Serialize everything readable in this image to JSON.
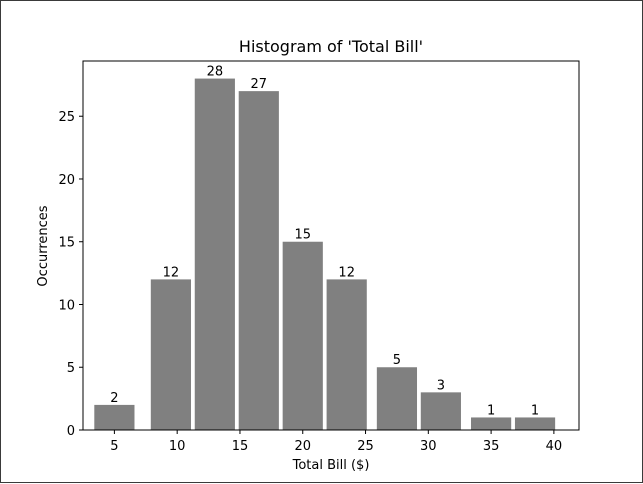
{
  "chart_data": {
    "type": "bar",
    "title": "Histogram of 'Total Bill'",
    "xlabel": "Total Bill ($)",
    "ylabel": "Occurrences",
    "bin_centers": [
      5,
      9.5,
      13,
      16.5,
      20,
      23.5,
      27.5,
      31,
      35,
      38.5
    ],
    "bin_width": 3.2,
    "values": [
      2,
      12,
      28,
      27,
      15,
      12,
      5,
      3,
      1,
      1
    ],
    "data_labels": [
      "2",
      "12",
      "28",
      "27",
      "15",
      "12",
      "5",
      "3",
      "1",
      "1"
    ],
    "xlim": [
      2.5,
      42
    ],
    "ylim": [
      0,
      29.4
    ],
    "xticks": [
      5,
      10,
      15,
      20,
      25,
      30,
      35,
      40
    ],
    "xtick_labels": [
      "5",
      "10",
      "15",
      "20",
      "25",
      "30",
      "35",
      "40"
    ],
    "yticks": [
      0,
      5,
      10,
      15,
      20,
      25
    ],
    "ytick_labels": [
      "0",
      "5",
      "10",
      "15",
      "20",
      "25"
    ],
    "bar_color": "#808080",
    "grid": false,
    "legend": "none"
  }
}
